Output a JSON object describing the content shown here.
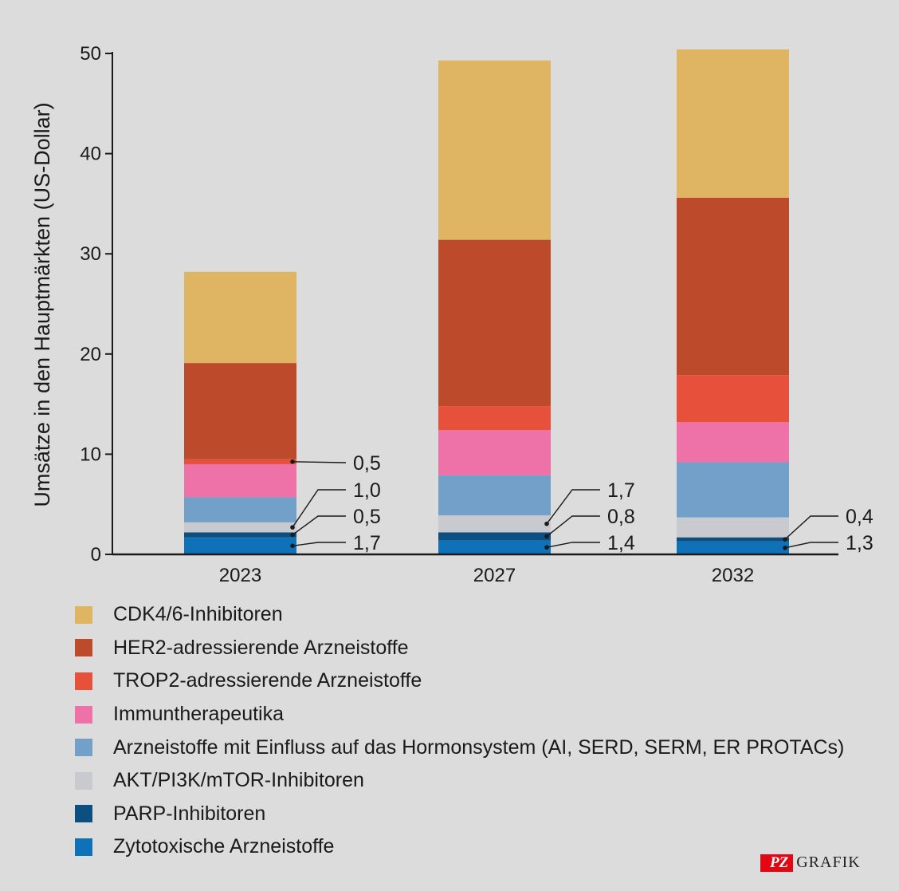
{
  "chart_data": {
    "type": "bar",
    "stacked": true,
    "title": "",
    "xlabel": "",
    "ylabel": "Umsätze in den Hauptmärkten (US-Dollar)",
    "ylim": [
      0,
      50
    ],
    "yticks": [
      "0",
      "10",
      "20",
      "30",
      "40",
      "50"
    ],
    "categories": [
      "2023",
      "2027",
      "2032"
    ],
    "series": [
      {
        "name": "Zytotoxische Arzneistoffe",
        "color": "#0f72b8",
        "values": [
          1.7,
          1.4,
          1.3
        ]
      },
      {
        "name": "PARP-Inhibitoren",
        "color": "#0d4f80",
        "values": [
          0.5,
          0.8,
          0.4
        ]
      },
      {
        "name": "AKT/PI3K/mTOR-Inhibitoren",
        "color": "#c9c9d0",
        "values": [
          1.0,
          1.7,
          2.0
        ]
      },
      {
        "name": "Arzneistoffe mit Einfluss auf das Hormonsystem (AI, SERD, SERM, ER PROTACs)",
        "color": "#72a0c8",
        "values": [
          2.5,
          4.0,
          5.5
        ]
      },
      {
        "name": "Immuntherapeutika",
        "color": "#ee71a8",
        "values": [
          3.3,
          4.5,
          4.0
        ]
      },
      {
        "name": "TROP2-adressierende Arzneistoffe",
        "color": "#e7513b",
        "values": [
          0.5,
          2.4,
          4.7
        ]
      },
      {
        "name": "HER2-adressierende Arzneistoffe",
        "color": "#bd4b2b",
        "values": [
          9.6,
          16.6,
          17.7
        ]
      },
      {
        "name": "CDK4/6-Inhibitoren",
        "color": "#dfb563",
        "values": [
          9.1,
          17.9,
          14.8
        ]
      }
    ],
    "annotations": [
      {
        "category": "2023",
        "series": 5,
        "text": "0,5"
      },
      {
        "category": "2023",
        "series": 2,
        "text": "1,0"
      },
      {
        "category": "2023",
        "series": 1,
        "text": "0,5"
      },
      {
        "category": "2023",
        "series": 0,
        "text": "1,7"
      },
      {
        "category": "2027",
        "series": 2,
        "text": "1,7"
      },
      {
        "category": "2027",
        "series": 1,
        "text": "0,8"
      },
      {
        "category": "2027",
        "series": 0,
        "text": "1,4"
      },
      {
        "category": "2032",
        "series": 1,
        "text": "0,4"
      },
      {
        "category": "2032",
        "series": 0,
        "text": "1,3"
      }
    ]
  },
  "legend": [
    {
      "label": "CDK4/6-Inhibitoren",
      "color": "#dfb563"
    },
    {
      "label": "HER2-adressierende Arzneistoffe",
      "color": "#bd4b2b"
    },
    {
      "label": "TROP2-adressierende Arzneistoffe",
      "color": "#e7513b"
    },
    {
      "label": "Immuntherapeutika",
      "color": "#ee71a8"
    },
    {
      "label": "Arzneistoffe mit Einfluss auf das Hormonsystem (AI, SERD, SERM, ER PROTACs)",
      "color": "#72a0c8"
    },
    {
      "label": "AKT/PI3K/mTOR-Inhibitoren",
      "color": "#c9c9d0"
    },
    {
      "label": "PARP-Inhibitoren",
      "color": "#0d4f80"
    },
    {
      "label": "Zytotoxische Arzneistoffe",
      "color": "#0f72b8"
    }
  ],
  "logo": {
    "badge": "PZ",
    "text": "GRAFIK"
  }
}
